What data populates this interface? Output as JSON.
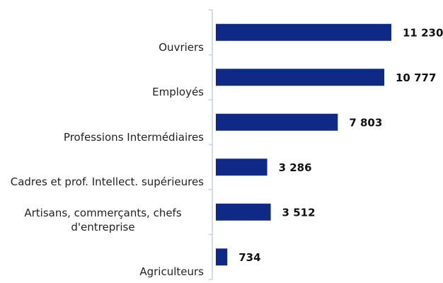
{
  "chart_data": {
    "type": "barh",
    "categories": [
      "Ouvriers",
      "Employés",
      "Professions Intermédiaires",
      "Cadres et prof. Intellect. supérieures",
      "Artisans, commerçants, chefs d'entreprise",
      "Agriculteurs"
    ],
    "values": [
      11230,
      10777,
      7803,
      3286,
      3512,
      734
    ],
    "value_labels": [
      "11 230",
      "10 777",
      "7 803",
      "3 286",
      "3 512",
      "734"
    ],
    "color": "#0e2a86"
  }
}
